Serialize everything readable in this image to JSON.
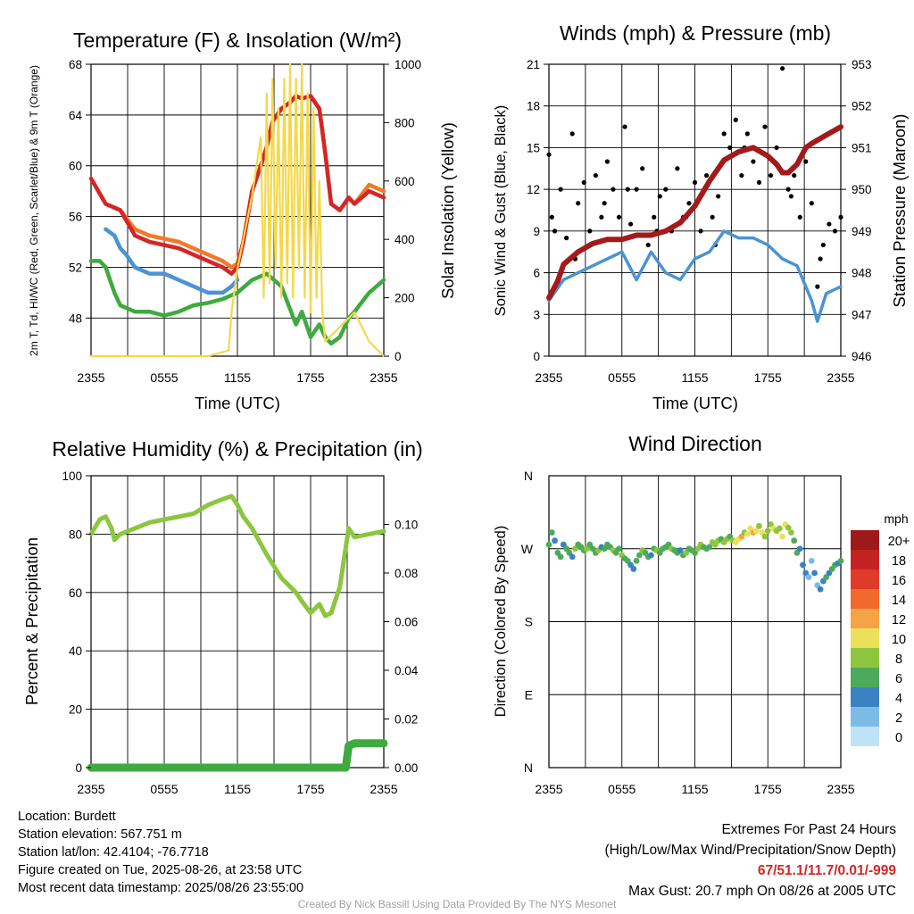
{
  "chart_data": [
    {
      "type": "line",
      "title": "Temperature (F) & Insolation (W/m²)",
      "xlabel": "Time (UTC)",
      "ylabel_left": "2m T, Td, HI/WC (Red, Green, Scarlet/Blue) & 9m T (Orange)",
      "ylabel_right": "Solar Insolation (Yellow)",
      "x_ticks": [
        "2355",
        "0555",
        "1155",
        "1755",
        "2355"
      ],
      "ylim_left": [
        45,
        68
      ],
      "y_ticks_left": [
        "48",
        "52",
        "56",
        "60",
        "64",
        "68"
      ],
      "ylim_right": [
        0,
        1000
      ],
      "y_ticks_right": [
        "0",
        "200",
        "400",
        "600",
        "800",
        "1000"
      ],
      "grid": true,
      "series": [
        {
          "color": "#f07a2a",
          "axis": "left",
          "x": [
            0,
            0.05,
            0.1,
            0.15,
            0.2,
            0.3,
            0.35,
            0.4,
            0.45,
            0.48,
            0.5,
            0.52,
            0.55,
            0.58,
            0.6,
            0.62,
            0.65,
            0.68,
            0.7,
            0.72,
            0.75,
            0.78,
            0.8,
            0.82,
            0.85,
            0.88,
            0.9,
            0.95,
            1.0
          ],
          "values": [
            59,
            57,
            56.5,
            55,
            54.5,
            54,
            53.5,
            53,
            52.5,
            52,
            52.3,
            54,
            58,
            60,
            61.5,
            63.5,
            64.5,
            65,
            65.5,
            65.3,
            65.5,
            64.5,
            61,
            57,
            56.5,
            57.5,
            57,
            58.5,
            58
          ]
        },
        {
          "color": "#d42626",
          "axis": "left",
          "x": [
            0,
            0.05,
            0.1,
            0.15,
            0.2,
            0.3,
            0.35,
            0.4,
            0.45,
            0.48,
            0.5,
            0.52,
            0.55,
            0.58,
            0.6,
            0.62,
            0.65,
            0.68,
            0.7,
            0.72,
            0.75,
            0.78,
            0.8,
            0.82,
            0.85,
            0.88,
            0.9,
            0.95,
            1.0
          ],
          "values": [
            59,
            57,
            56.5,
            54.5,
            54,
            53.5,
            53,
            52.5,
            52,
            51.5,
            52,
            54,
            58,
            60,
            61.5,
            63.5,
            64.5,
            65,
            65.5,
            65.3,
            65.5,
            64.5,
            61,
            57,
            56.5,
            57.5,
            57,
            58,
            57.5
          ]
        },
        {
          "color": "#4a93d4",
          "axis": "left",
          "x": [
            0.05,
            0.08,
            0.1,
            0.12,
            0.15,
            0.2,
            0.25,
            0.3,
            0.35,
            0.4,
            0.45,
            0.48,
            0.5
          ],
          "values": [
            55,
            54.5,
            53.5,
            53,
            52,
            51.5,
            51.5,
            51,
            50.5,
            50,
            50,
            50.5,
            51
          ]
        },
        {
          "color": "#3faa3f",
          "axis": "left",
          "x": [
            0,
            0.03,
            0.05,
            0.08,
            0.1,
            0.15,
            0.2,
            0.25,
            0.3,
            0.35,
            0.4,
            0.45,
            0.5,
            0.55,
            0.6,
            0.65,
            0.7,
            0.72,
            0.75,
            0.78,
            0.8,
            0.82,
            0.85,
            0.88,
            0.9,
            0.95,
            1.0
          ],
          "values": [
            52.5,
            52.5,
            52,
            50,
            49,
            48.5,
            48.5,
            48.2,
            48.5,
            49,
            49.2,
            49.5,
            50,
            51,
            51.5,
            50.5,
            47.5,
            48.5,
            46.5,
            47.5,
            46.5,
            46,
            46.5,
            48,
            48.5,
            50,
            51
          ]
        },
        {
          "color": "#f5d84a",
          "axis": "right",
          "x": [
            0,
            0.2,
            0.4,
            0.47,
            0.48,
            0.5,
            0.52,
            0.55,
            0.58,
            0.59,
            0.6,
            0.61,
            0.62,
            0.63,
            0.64,
            0.65,
            0.66,
            0.67,
            0.68,
            0.69,
            0.7,
            0.71,
            0.72,
            0.73,
            0.74,
            0.75,
            0.76,
            0.77,
            0.78,
            0.79,
            0.8,
            0.85,
            0.9,
            0.95,
            1.0
          ],
          "values": [
            0,
            0,
            0,
            20,
            150,
            300,
            400,
            550,
            750,
            200,
            900,
            250,
            950,
            300,
            850,
            200,
            950,
            250,
            1000,
            200,
            950,
            300,
            1000,
            200,
            900,
            150,
            850,
            200,
            600,
            150,
            50,
            100,
            150,
            50,
            0
          ]
        }
      ]
    },
    {
      "type": "line",
      "title": "Winds (mph) & Pressure (mb)",
      "xlabel": "Time (UTC)",
      "ylabel_left": "Sonic Wind & Gust (Blue, Black)",
      "ylabel_right": "Station Pressure (Maroon)",
      "x_ticks": [
        "2355",
        "0555",
        "1155",
        "1755",
        "2355"
      ],
      "ylim_left": [
        0,
        21
      ],
      "y_ticks_left": [
        "0",
        "3",
        "6",
        "9",
        "12",
        "15",
        "18",
        "21"
      ],
      "ylim_right": [
        946,
        953
      ],
      "y_ticks_right": [
        "946",
        "947",
        "948",
        "949",
        "950",
        "951",
        "952",
        "953"
      ],
      "grid": true,
      "series": [
        {
          "color": "#4a93d4",
          "axis": "left",
          "x": [
            0,
            0.05,
            0.1,
            0.15,
            0.2,
            0.25,
            0.3,
            0.35,
            0.4,
            0.45,
            0.5,
            0.55,
            0.6,
            0.65,
            0.7,
            0.75,
            0.8,
            0.85,
            0.9,
            0.92,
            0.95,
            1.0
          ],
          "values": [
            4,
            5.5,
            6,
            6.5,
            7,
            7.5,
            5.5,
            7.5,
            6,
            5.5,
            7,
            7.5,
            9,
            8.5,
            8.5,
            8,
            7,
            6.5,
            4,
            2.5,
            4.5,
            5
          ]
        },
        {
          "color": "#a31a1a",
          "axis": "right",
          "x": [
            0,
            0.03,
            0.05,
            0.1,
            0.15,
            0.2,
            0.25,
            0.3,
            0.35,
            0.4,
            0.45,
            0.5,
            0.55,
            0.6,
            0.65,
            0.7,
            0.75,
            0.78,
            0.8,
            0.82,
            0.85,
            0.88,
            0.9,
            0.95,
            1.0
          ],
          "values": [
            947.4,
            947.8,
            948.2,
            948.5,
            948.7,
            948.8,
            948.8,
            948.9,
            948.9,
            949.0,
            949.2,
            949.6,
            950.2,
            950.7,
            950.9,
            951.0,
            950.8,
            950.6,
            950.4,
            950.4,
            950.6,
            951.0,
            951.1,
            951.3,
            951.5
          ]
        }
      ],
      "gust_points": {
        "color": "#000000",
        "x": [
          0,
          0.02,
          0.04,
          0.06,
          0.08,
          0.1,
          0.12,
          0.14,
          0.16,
          0.18,
          0.2,
          0.22,
          0.24,
          0.26,
          0.28,
          0.3,
          0.32,
          0.34,
          0.36,
          0.38,
          0.4,
          0.42,
          0.44,
          0.46,
          0.48,
          0.5,
          0.52,
          0.54,
          0.56,
          0.58,
          0.6,
          0.62,
          0.64,
          0.66,
          0.68,
          0.7,
          0.72,
          0.74,
          0.76,
          0.78,
          0.8,
          0.82,
          0.84,
          0.86,
          0.88,
          0.9,
          0.92,
          0.94,
          0.96,
          0.98,
          1.0,
          0.01,
          0.09,
          0.19,
          0.27,
          0.37,
          0.47,
          0.57,
          0.67,
          0.83,
          0.93
        ],
        "values": [
          14.5,
          9,
          12,
          8.5,
          16,
          11,
          12.5,
          9,
          13,
          10,
          14,
          12,
          10,
          16.5,
          9.5,
          12,
          13.5,
          8,
          10,
          11.5,
          12,
          9,
          13.5,
          10,
          11,
          12.5,
          9,
          13,
          10,
          11.5,
          16,
          15,
          17,
          13,
          16,
          14,
          12.5,
          16.5,
          13,
          15,
          20.7,
          12,
          13,
          10,
          14,
          11,
          5,
          8,
          9.5,
          9,
          10,
          10,
          7,
          11,
          12,
          9,
          10,
          8,
          15,
          11.5,
          7
        ]
      }
    },
    {
      "type": "line",
      "title": "Relative Humidity (%) & Precipitation (in)",
      "ylabel_left": "Percent & Precipitation",
      "x_ticks": [
        "2355",
        "0555",
        "1155",
        "1755",
        "2355"
      ],
      "ylim_left": [
        0,
        100
      ],
      "y_ticks_left": [
        "0",
        "20",
        "40",
        "60",
        "80",
        "100"
      ],
      "ylim_right": [
        0,
        0.12
      ],
      "y_ticks_right": [
        "0.00",
        "0.02",
        "0.04",
        "0.06",
        "0.08",
        "0.10"
      ],
      "grid": true,
      "series": [
        {
          "color": "#8cc63f",
          "axis": "left",
          "x": [
            0,
            0.03,
            0.05,
            0.07,
            0.08,
            0.1,
            0.15,
            0.2,
            0.25,
            0.3,
            0.35,
            0.4,
            0.45,
            0.48,
            0.5,
            0.52,
            0.55,
            0.6,
            0.65,
            0.7,
            0.72,
            0.75,
            0.78,
            0.8,
            0.82,
            0.85,
            0.88,
            0.9,
            0.95,
            1.0
          ],
          "values": [
            80,
            85,
            86,
            82,
            78,
            80,
            82,
            84,
            85,
            86,
            87,
            90,
            92,
            93,
            90,
            86,
            82,
            73,
            65,
            60,
            57,
            53,
            56,
            52,
            53,
            62,
            82,
            79,
            80,
            81
          ]
        },
        {
          "color": "#3faa3f",
          "axis": "right",
          "x": [
            0,
            0.5,
            0.87,
            0.88,
            0.9,
            1.0
          ],
          "values": [
            0,
            0,
            0,
            0.009,
            0.01,
            0.01
          ]
        }
      ]
    },
    {
      "type": "scatter",
      "title": "Wind Direction",
      "ylabel": "Direction (Colored By Speed)",
      "x_ticks": [
        "2355",
        "0555",
        "1155",
        "1755",
        "2355"
      ],
      "y_ticks": [
        "N",
        "E",
        "S",
        "W",
        "N"
      ],
      "ylim": [
        0,
        360
      ],
      "grid": true,
      "colorbar_title": "mph",
      "colorbar_labels": [
        "20+",
        "18",
        "16",
        "14",
        "12",
        "10",
        "8",
        "6",
        "4",
        "2",
        "0"
      ],
      "colorbar_colors": [
        "#9e1a1a",
        "#c42222",
        "#de3b2b",
        "#ef6a2c",
        "#f6a345",
        "#ece05a",
        "#8cc63f",
        "#4daa5a",
        "#3a82c2",
        "#7cbbe6",
        "#bfe2f7"
      ],
      "points": {
        "x": [
          0,
          0.01,
          0.02,
          0.03,
          0.04,
          0.05,
          0.06,
          0.07,
          0.08,
          0.09,
          0.1,
          0.11,
          0.12,
          0.13,
          0.14,
          0.15,
          0.16,
          0.17,
          0.18,
          0.19,
          0.2,
          0.21,
          0.22,
          0.23,
          0.24,
          0.25,
          0.26,
          0.27,
          0.28,
          0.29,
          0.3,
          0.31,
          0.32,
          0.33,
          0.34,
          0.35,
          0.36,
          0.37,
          0.38,
          0.39,
          0.4,
          0.41,
          0.42,
          0.43,
          0.44,
          0.45,
          0.46,
          0.47,
          0.48,
          0.49,
          0.5,
          0.51,
          0.52,
          0.53,
          0.54,
          0.55,
          0.56,
          0.57,
          0.58,
          0.59,
          0.6,
          0.61,
          0.62,
          0.63,
          0.64,
          0.65,
          0.66,
          0.67,
          0.68,
          0.69,
          0.7,
          0.71,
          0.72,
          0.73,
          0.74,
          0.75,
          0.76,
          0.77,
          0.78,
          0.79,
          0.8,
          0.81,
          0.82,
          0.83,
          0.84,
          0.85,
          0.86,
          0.87,
          0.88,
          0.89,
          0.9,
          0.91,
          0.92,
          0.93,
          0.94,
          0.95,
          0.96,
          0.97,
          0.98,
          0.99,
          1.0
        ],
        "dir": [
          275,
          290,
          280,
          265,
          260,
          275,
          270,
          265,
          260,
          270,
          275,
          272,
          268,
          270,
          275,
          270,
          265,
          268,
          272,
          270,
          275,
          272,
          268,
          265,
          270,
          262,
          258,
          255,
          250,
          245,
          255,
          262,
          268,
          265,
          260,
          262,
          270,
          268,
          265,
          270,
          272,
          275,
          270,
          268,
          265,
          268,
          262,
          265,
          270,
          268,
          265,
          270,
          275,
          272,
          270,
          272,
          278,
          275,
          280,
          282,
          278,
          282,
          285,
          280,
          278,
          282,
          285,
          290,
          288,
          295,
          290,
          292,
          298,
          290,
          285,
          292,
          300,
          295,
          292,
          295,
          285,
          300,
          296,
          290,
          280,
          265,
          270,
          250,
          240,
          235,
          255,
          240,
          225,
          220,
          230,
          235,
          240,
          245,
          250,
          252,
          255
        ],
        "speed": [
          6,
          5,
          4,
          5,
          6,
          4,
          5,
          6,
          4,
          7,
          6,
          5,
          6,
          7,
          5,
          6,
          6,
          7,
          4,
          5,
          6,
          6,
          7,
          5,
          5,
          7,
          6,
          5,
          4,
          3,
          5,
          6,
          7,
          6,
          5,
          4,
          6,
          7,
          6,
          5,
          5,
          6,
          7,
          6,
          5,
          4,
          6,
          7,
          6,
          5,
          6,
          7,
          8,
          6,
          5,
          6,
          7,
          8,
          7,
          6,
          8,
          7,
          6,
          8,
          9,
          10,
          11,
          8,
          9,
          10,
          11,
          9,
          8,
          10,
          8,
          7,
          8,
          9,
          7,
          8,
          9,
          10,
          8,
          7,
          6,
          5,
          4,
          3,
          4,
          2,
          2,
          3,
          2,
          3,
          4,
          5,
          4,
          5,
          6,
          4,
          5
        ]
      }
    }
  ],
  "info": {
    "location": "Location: Burdett",
    "elevation": "Station elevation: 567.751 m",
    "latlon": "Station lat/lon: 42.4104; -76.7718",
    "created": "Figure created on Tue, 2025-08-26, at 23:58 UTC",
    "recent": "Most recent data timestamp: 2025/08/26 23:55:00"
  },
  "extremes": {
    "title": "Extremes For Past 24 Hours",
    "subtitle": "(High/Low/Max Wind/Precipitation/Snow Depth)",
    "values": "67/51.1/11.7/0.01/-999",
    "max_gust": "Max Gust: 20.7 mph On 08/26 at 2005 UTC"
  },
  "credit": "Created By Nick Bassill Using Data Provided By The NYS Mesonet"
}
